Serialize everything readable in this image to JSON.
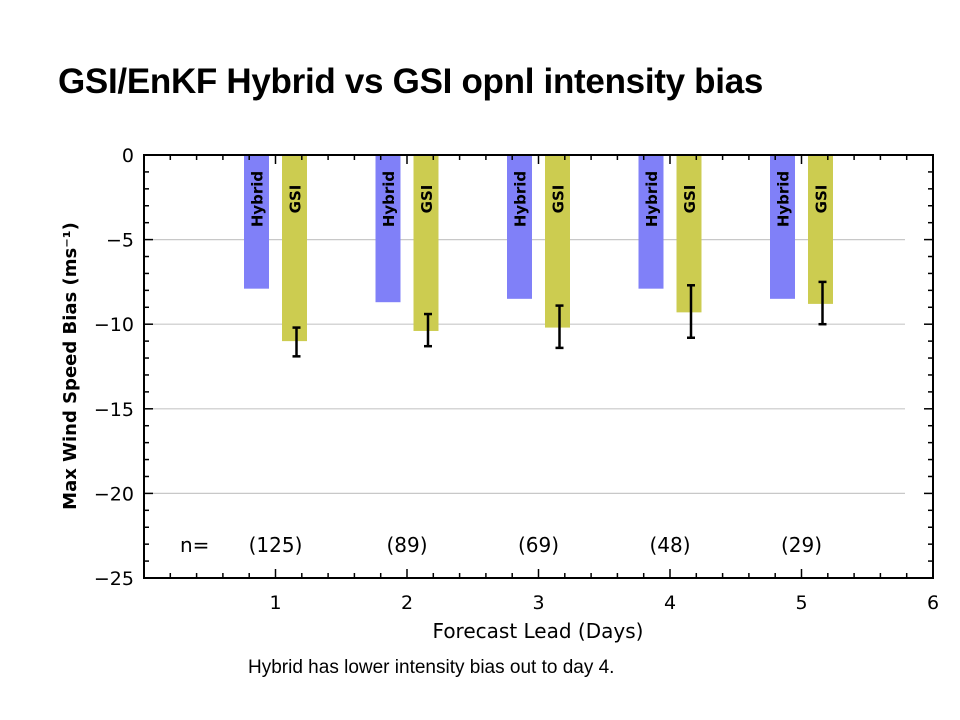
{
  "slide": {
    "title": "GSI/EnKF Hybrid vs GSI opnl intensity bias",
    "caption": "Hybrid has lower intensity bias out to day 4."
  },
  "colors": {
    "hybrid": "#8080f8",
    "gsi": "#cccc50",
    "error_bar": "#000000",
    "gridline": "#c8c8c8"
  },
  "chart_data": {
    "type": "bar",
    "xlabel": "Forecast Lead (Days)",
    "ylabel": "Max Wind Speed Bias (ms⁻¹)",
    "xlim": [
      0,
      6
    ],
    "ylim": [
      -25,
      0
    ],
    "x_ticks": [
      1,
      2,
      3,
      4,
      5,
      6
    ],
    "y_ticks": [
      0,
      -5,
      -10,
      -15,
      -20,
      -25
    ],
    "grid": true,
    "categories": [
      1,
      2,
      3,
      4,
      5
    ],
    "series": [
      {
        "name": "Hybrid",
        "values": [
          -7.9,
          -8.7,
          -8.5,
          -7.9,
          -8.5
        ]
      },
      {
        "name": "GSI",
        "values": [
          -11.0,
          -10.4,
          -10.2,
          -9.3,
          -8.8
        ],
        "error_low": [
          -11.9,
          -11.3,
          -11.4,
          -10.8,
          -10.0
        ],
        "error_high": [
          -10.2,
          -9.4,
          -8.9,
          -7.7,
          -7.5
        ]
      }
    ],
    "n_label": "n=",
    "n_values": [
      "(125)",
      "(89)",
      "(69)",
      "(48)",
      "(29)"
    ]
  }
}
